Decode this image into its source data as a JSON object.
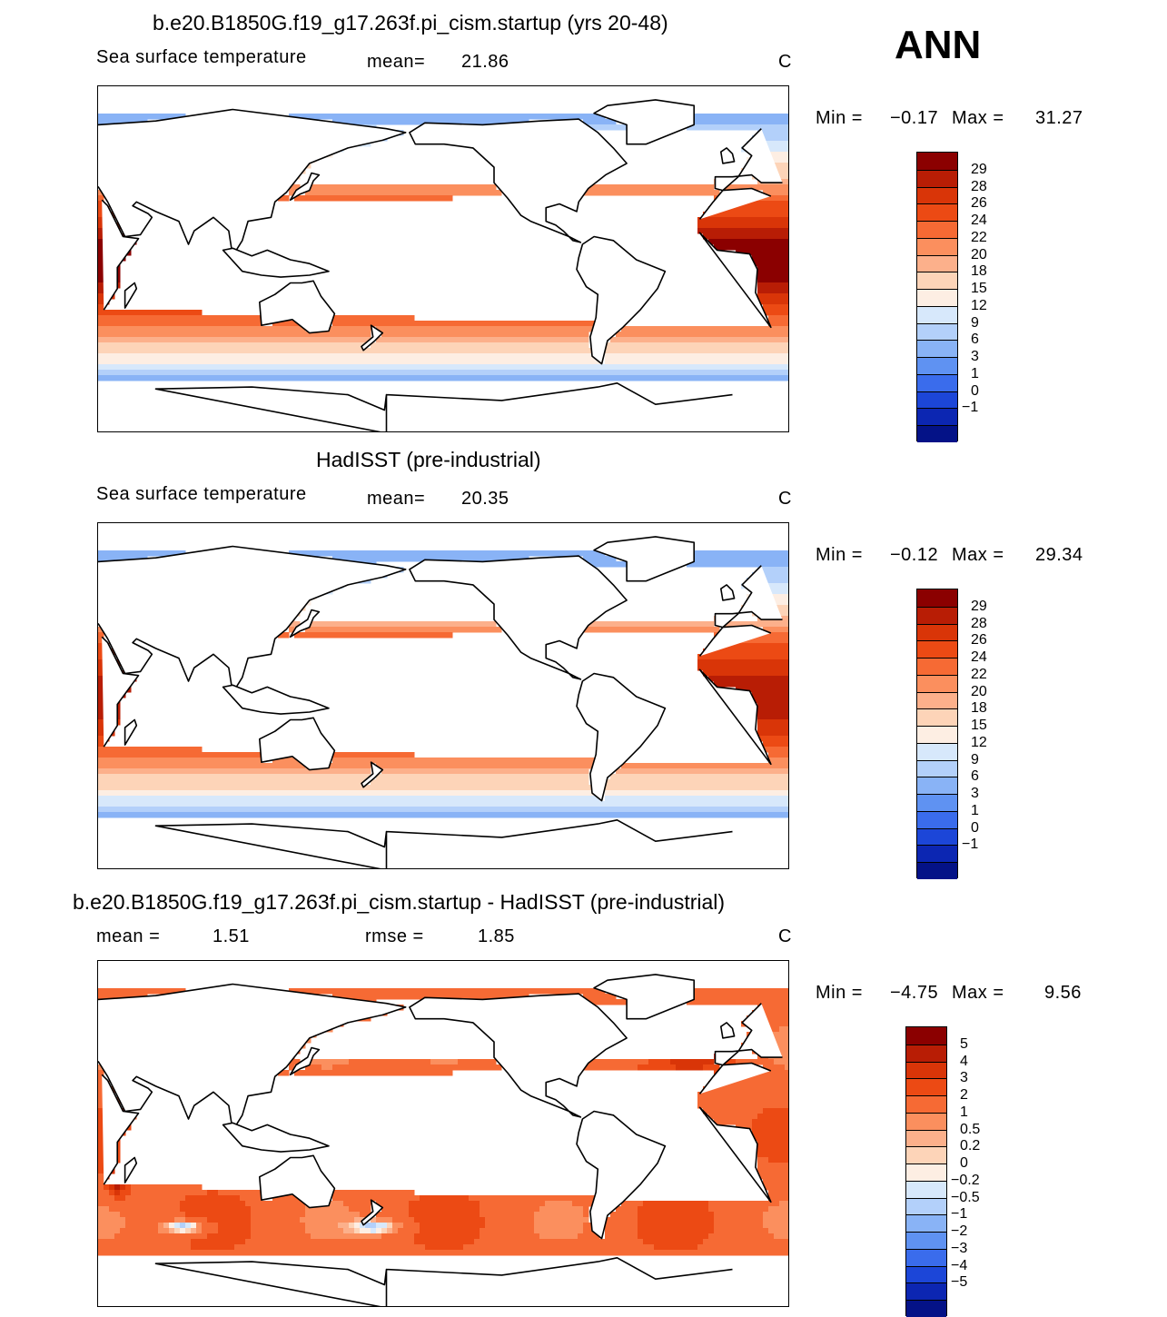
{
  "season": "ANN",
  "land_color": "#ffffff",
  "chart_data": [
    {
      "type": "heatmap",
      "title": "b.e20.B1850G.f19_g17.263f.pi_cism.startup (yrs 20-48)",
      "variable": "Sea surface temperature",
      "units": "C",
      "stats_left": "mean=",
      "mean": "21.86",
      "minmax": {
        "min_label": "Min =",
        "min": "−0.17",
        "max_label": "Max =",
        "max": "31.27"
      },
      "colorbar": {
        "levels": [
          "29",
          "28",
          "26",
          "24",
          "22",
          "20",
          "18",
          "15",
          "12",
          "9",
          "6",
          "3",
          "1",
          "0",
          "−1"
        ],
        "colors": [
          "#8b0000",
          "#b81d05",
          "#d93508",
          "#ec4a14",
          "#f66a34",
          "#fb8f5e",
          "#fcb08b",
          "#fdd4b8",
          "#fdeee3",
          "#d7e8fb",
          "#b3d0fa",
          "#89b3f6",
          "#5f92f2",
          "#3a6cec",
          "#1c46d8",
          "#0c26b2",
          "#041287"
        ]
      },
      "field": {
        "tmin": -0.17,
        "tmax": 31.27,
        "lo": -1,
        "hi": 30,
        "kind": "sst"
      }
    },
    {
      "type": "heatmap",
      "title": "HadISST (pre-industrial)",
      "variable": "Sea surface temperature",
      "units": "C",
      "stats_left": "mean=",
      "mean": "20.35",
      "minmax": {
        "min_label": "Min =",
        "min": "−0.12",
        "max_label": "Max =",
        "max": "29.34"
      },
      "colorbar": {
        "levels": [
          "29",
          "28",
          "26",
          "24",
          "22",
          "20",
          "18",
          "15",
          "12",
          "9",
          "6",
          "3",
          "1",
          "0",
          "−1"
        ],
        "colors": [
          "#8b0000",
          "#b81d05",
          "#d93508",
          "#ec4a14",
          "#f66a34",
          "#fb8f5e",
          "#fcb08b",
          "#fdd4b8",
          "#fdeee3",
          "#d7e8fb",
          "#b3d0fa",
          "#89b3f6",
          "#5f92f2",
          "#3a6cec",
          "#1c46d8",
          "#0c26b2",
          "#041287"
        ]
      },
      "field": {
        "tmin": -0.12,
        "tmax": 29.34,
        "lo": -1,
        "hi": 30,
        "kind": "sst_obs"
      }
    },
    {
      "type": "heatmap",
      "title": "b.e20.B1850G.f19_g17.263f.pi_cism.startup - HadISST (pre-industrial)",
      "units": "C",
      "mean_label": "mean =",
      "mean": "1.51",
      "rmse_label": "rmse =",
      "rmse": "1.85",
      "minmax": {
        "min_label": "Min =",
        "min": "−4.75",
        "max_label": "Max =",
        "max": "9.56"
      },
      "colorbar": {
        "levels": [
          "5",
          "4",
          "3",
          "2",
          "1",
          "0.5",
          "0.2",
          "0",
          "−0.2",
          "−0.5",
          "−1",
          "−2",
          "−3",
          "−4",
          "−5"
        ],
        "colors": [
          "#8b0000",
          "#b81d05",
          "#d93508",
          "#ec4a14",
          "#f66a34",
          "#fb8f5e",
          "#fcb08b",
          "#fdd4b8",
          "#fdeee3",
          "#d7e8fb",
          "#b3d0fa",
          "#89b3f6",
          "#5f92f2",
          "#3a6cec",
          "#1c46d8",
          "#0c26b2",
          "#041287"
        ]
      },
      "field": {
        "tmin": -4.75,
        "tmax": 9.56,
        "lo": -5,
        "hi": 5,
        "kind": "diff"
      }
    }
  ]
}
